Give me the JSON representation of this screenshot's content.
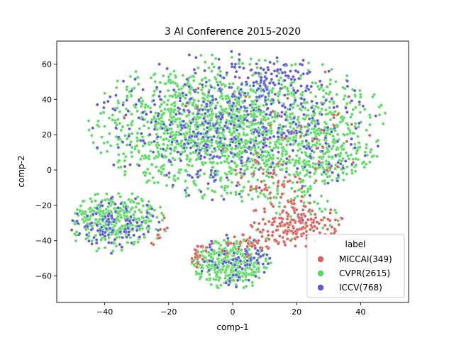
{
  "chart_data": {
    "type": "scatter",
    "title": "3 AI Conference 2015-2020",
    "xlabel": "comp-1",
    "ylabel": "comp-2",
    "xlim": [
      -55,
      55
    ],
    "ylim": [
      -75,
      73
    ],
    "xticks": [
      -40,
      -20,
      0,
      20,
      40
    ],
    "yticks": [
      -60,
      -40,
      -20,
      0,
      20,
      40,
      60
    ],
    "grid": false,
    "legend": {
      "title": "label",
      "placement": "lower-right",
      "entries": [
        {
          "name": "MICCAI(349)",
          "color": "#db5f57"
        },
        {
          "name": "CVPR(2615)",
          "color": "#57db5f"
        },
        {
          "name": "ICCV(768)",
          "color": "#5f57db"
        }
      ]
    },
    "series": [
      {
        "name": "MICCAI(349)",
        "color": "#db5f57",
        "clusters": [
          {
            "cx": 22,
            "cy": -30,
            "sx": 6,
            "sy": 5,
            "n": 140
          },
          {
            "cx": 8,
            "cy": -38,
            "sx": 6,
            "sy": 5,
            "n": 70
          },
          {
            "cx": 14,
            "cy": -10,
            "sx": 6,
            "sy": 8,
            "n": 45
          },
          {
            "cx": -16,
            "cy": -42,
            "sx": 3,
            "sy": 5,
            "n": 35
          },
          {
            "cx": 25,
            "cy": 5,
            "sx": 12,
            "sy": 25,
            "n": 45
          },
          {
            "cx": 0,
            "cy": 10,
            "sx": 25,
            "sy": 25,
            "n": 14
          }
        ]
      },
      {
        "name": "CVPR(2615)",
        "color": "#57db5f",
        "clusters": [
          {
            "cx": -2,
            "cy": 22,
            "sx": 20,
            "sy": 19,
            "n": 1650
          },
          {
            "cx": 30,
            "cy": 10,
            "sx": 9,
            "sy": 20,
            "n": 260
          },
          {
            "cx": -36,
            "cy": -28,
            "sx": 8,
            "sy": 7,
            "n": 340
          },
          {
            "cx": -2,
            "cy": -52,
            "sx": 7,
            "sy": 7,
            "n": 365
          }
        ]
      },
      {
        "name": "ICCV(768)",
        "color": "#5f57db",
        "clusters": [
          {
            "cx": 0,
            "cy": 25,
            "sx": 20,
            "sy": 19,
            "n": 470
          },
          {
            "cx": 12,
            "cy": 55,
            "sx": 7,
            "sy": 6,
            "n": 70
          },
          {
            "cx": -38,
            "cy": -30,
            "sx": 7,
            "sy": 7,
            "n": 110
          },
          {
            "cx": 2,
            "cy": -52,
            "sx": 6,
            "sy": 7,
            "n": 80
          },
          {
            "cx": 30,
            "cy": 10,
            "sx": 9,
            "sy": 18,
            "n": 38
          }
        ]
      }
    ]
  }
}
